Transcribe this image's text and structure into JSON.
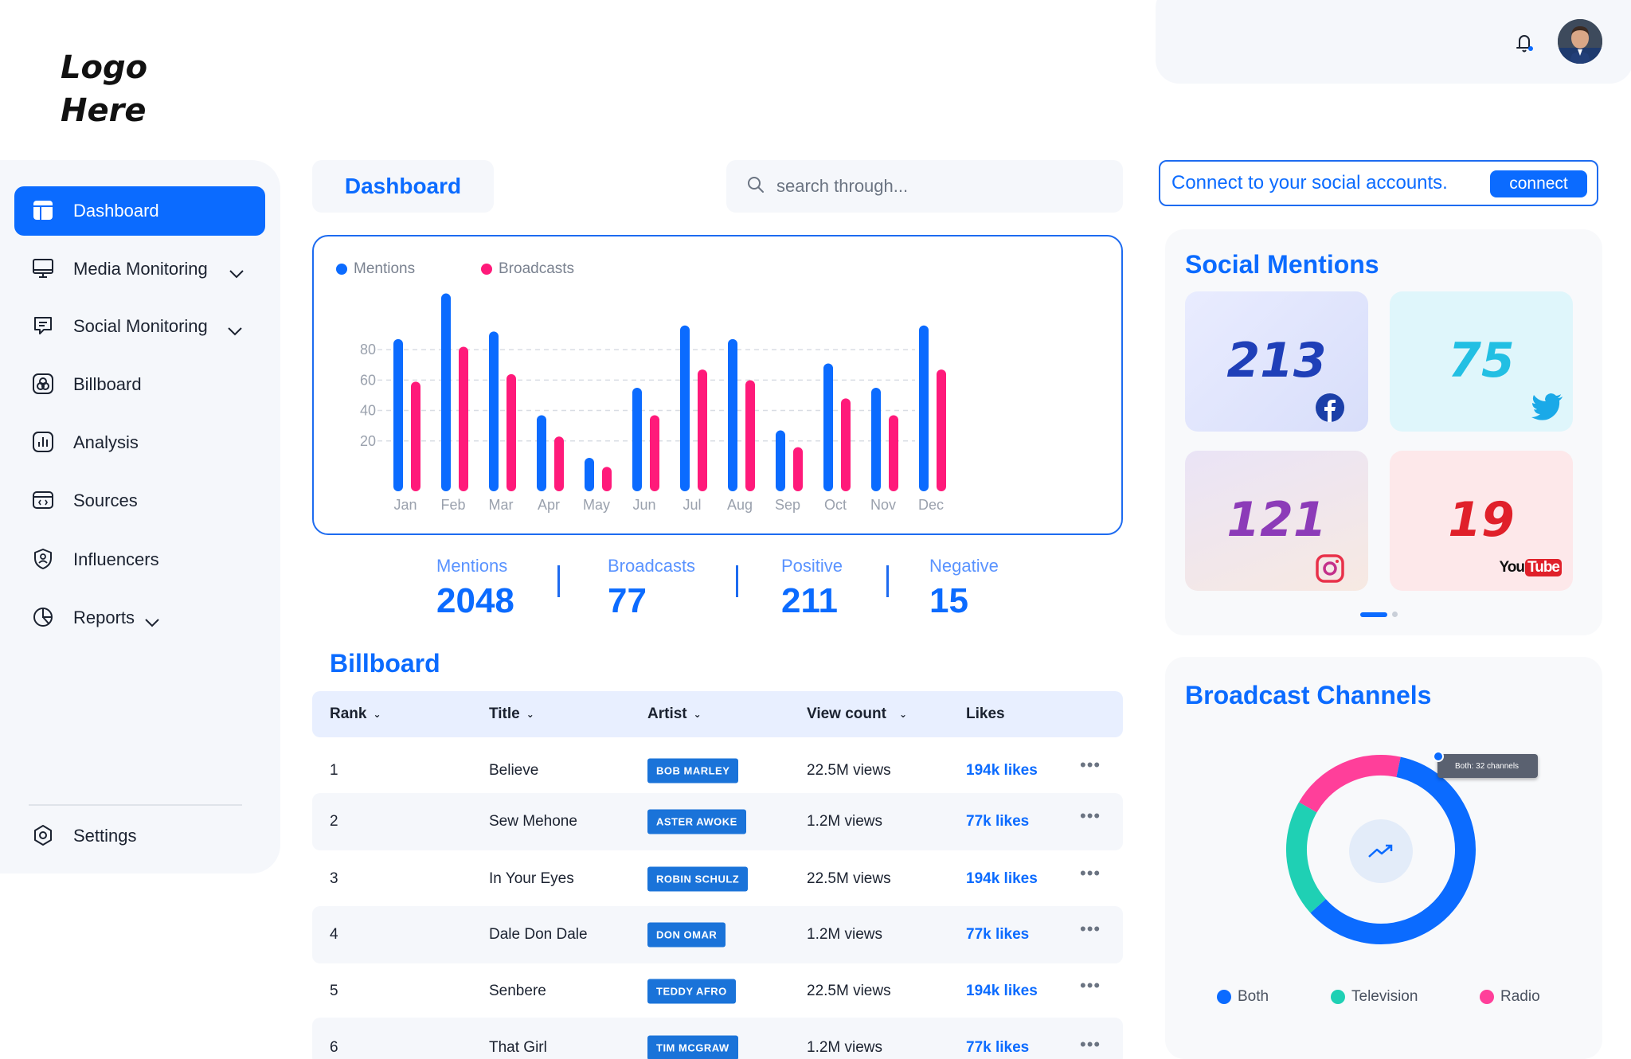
{
  "logo": {
    "line1": "Logo",
    "line2": "Here"
  },
  "sidebar": {
    "items": [
      {
        "label": "Dashboard",
        "icon": "dashboard-icon",
        "active": true
      },
      {
        "label": "Media Monitoring",
        "icon": "monitor-icon",
        "expandable": true
      },
      {
        "label": "Social Monitoring",
        "icon": "chat-icon",
        "expandable": true
      },
      {
        "label": "Billboard",
        "icon": "billboard-icon"
      },
      {
        "label": "Analysis",
        "icon": "analysis-icon"
      },
      {
        "label": "Sources",
        "icon": "sources-icon"
      },
      {
        "label": "Influencers",
        "icon": "shield-user-icon"
      },
      {
        "label": "Reports",
        "icon": "pie-chart-icon",
        "expandable": true
      }
    ],
    "settings_label": "Settings"
  },
  "header": {
    "tab_label": "Dashboard",
    "search_placeholder": "search through..."
  },
  "chart_data": {
    "type": "bar",
    "categories": [
      "Jan",
      "Feb",
      "Mar",
      "Apr",
      "May",
      "Jun",
      "Jul",
      "Aug",
      "Sep",
      "Oct",
      "Nov",
      "Dec"
    ],
    "series": [
      {
        "name": "Mentions",
        "color": "#0b6bff",
        "values": [
          100,
          130,
          105,
          50,
          22,
          68,
          109,
          100,
          40,
          84,
          68,
          109
        ]
      },
      {
        "name": "Broadcasts",
        "color": "#ff1a7a",
        "values": [
          72,
          95,
          77,
          36,
          16,
          50,
          80,
          73,
          29,
          61,
          50,
          80
        ]
      }
    ],
    "yticks": [
      20,
      40,
      60,
      80
    ],
    "ylim": [
      0,
      135
    ],
    "grid": true,
    "legend": "top-left"
  },
  "stats": [
    {
      "label": "Mentions",
      "value": "2048"
    },
    {
      "label": "Broadcasts",
      "value": "77"
    },
    {
      "label": "Positive",
      "value": "211"
    },
    {
      "label": "Negative",
      "value": "15"
    }
  ],
  "billboard": {
    "title": "Billboard",
    "columns": [
      "Rank",
      "Title",
      "Artist",
      "View count",
      "Likes"
    ],
    "rows": [
      {
        "rank": "1",
        "title": "Believe",
        "artist": "BOB MARLEY",
        "views": "22.5M views",
        "likes": "194k likes"
      },
      {
        "rank": "2",
        "title": "Sew Mehone",
        "artist": "ASTER AWOKE",
        "views": "1.2M views",
        "likes": "77k likes"
      },
      {
        "rank": "3",
        "title": "In Your Eyes",
        "artist": "ROBIN SCHULZ",
        "views": "22.5M views",
        "likes": "194k likes"
      },
      {
        "rank": "4",
        "title": "Dale Don Dale",
        "artist": "DON OMAR",
        "views": "1.2M views",
        "likes": "77k likes"
      },
      {
        "rank": "5",
        "title": "Senbere",
        "artist": "TEDDY AFRO",
        "views": "22.5M views",
        "likes": "194k likes"
      },
      {
        "rank": "6",
        "title": "That Girl",
        "artist": "TIM MCGRAW",
        "views": "1.2M views",
        "likes": "77k likes"
      }
    ],
    "more_glyph": "•••"
  },
  "connect": {
    "text": "Connect to your social accounts.",
    "button": "connect"
  },
  "social_mentions": {
    "title": "Social Mentions",
    "tiles": [
      {
        "value": "213",
        "platform": "facebook-icon"
      },
      {
        "value": "75",
        "platform": "twitter-icon"
      },
      {
        "value": "121",
        "platform": "instagram-icon"
      },
      {
        "value": "19",
        "platform": "youtube-icon",
        "logo_text_you": "You",
        "logo_text_tube": "Tube"
      }
    ]
  },
  "broadcast_channels": {
    "title": "Broadcast Channels",
    "tooltip": "Both: 32 channels",
    "legend": [
      {
        "label": "Both",
        "color": "#0b6bff"
      },
      {
        "label": "Television",
        "color": "#1fd0b4"
      },
      {
        "label": "Radio",
        "color": "#ff3f9a"
      }
    ],
    "segments": [
      {
        "name": "Both",
        "fraction": 0.6
      },
      {
        "name": "Television",
        "fraction": 0.2
      },
      {
        "name": "Radio",
        "fraction": 0.2
      }
    ]
  }
}
